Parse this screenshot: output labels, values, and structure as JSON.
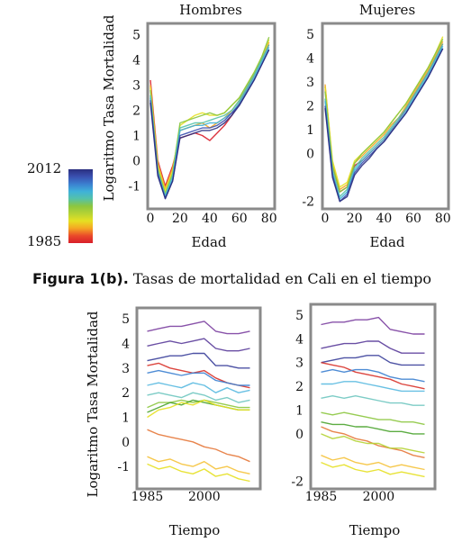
{
  "figure_caption": {
    "label": "Figura 1(b).",
    "text": " Tasas de mortalidad en Cali en el tiempo"
  },
  "colorbar": {
    "max_label": "2012",
    "min_label": "1985",
    "colors": [
      "#2a2f7f",
      "#3a50b0",
      "#3b7fd0",
      "#3fb1d9",
      "#55c2a8",
      "#8cc63f",
      "#b5d334",
      "#e6e022",
      "#f5a623",
      "#ea4a2a",
      "#d81e2a"
    ]
  },
  "chart_data": [
    {
      "type": "line",
      "title": "Hombres",
      "xlabel": "Edad",
      "ylabel": "Logaritmo Tasa Mortalidad",
      "xlim": [
        0,
        82
      ],
      "ylim": [
        -1.8,
        5.3
      ],
      "xticks": [
        "0",
        "20",
        "40",
        "60",
        "80"
      ],
      "yticks": [
        "-1",
        "0",
        "1",
        "2",
        "3",
        "4",
        "5"
      ],
      "x": [
        0,
        5,
        10,
        15,
        20,
        25,
        30,
        35,
        40,
        45,
        50,
        55,
        60,
        65,
        70,
        75,
        80
      ],
      "series": [
        {
          "color": "#d81e2a",
          "values": [
            3.2,
            0.0,
            -1.0,
            -0.2,
            0.9,
            1.0,
            1.1,
            1.0,
            0.8,
            1.1,
            1.4,
            1.8,
            2.3,
            2.8,
            3.4,
            4.0,
            4.6
          ]
        },
        {
          "color": "#f5a623",
          "values": [
            3.0,
            -0.1,
            -1.1,
            -0.3,
            1.2,
            1.3,
            1.4,
            1.5,
            1.3,
            1.5,
            1.7,
            2.0,
            2.4,
            2.9,
            3.4,
            4.0,
            4.7
          ]
        },
        {
          "color": "#e6e022",
          "values": [
            2.9,
            -0.2,
            -1.2,
            -0.4,
            1.4,
            1.6,
            1.8,
            1.9,
            1.8,
            1.8,
            1.9,
            2.2,
            2.5,
            3.0,
            3.5,
            4.1,
            4.8
          ]
        },
        {
          "color": "#8cc63f",
          "values": [
            2.8,
            -0.3,
            -1.3,
            -0.5,
            1.5,
            1.6,
            1.7,
            1.8,
            1.9,
            1.8,
            1.9,
            2.2,
            2.5,
            3.0,
            3.5,
            4.1,
            4.9
          ]
        },
        {
          "color": "#55c2a8",
          "values": [
            2.6,
            -0.4,
            -1.4,
            -0.6,
            1.3,
            1.4,
            1.5,
            1.5,
            1.6,
            1.7,
            1.8,
            2.0,
            2.4,
            2.9,
            3.4,
            4.0,
            4.6
          ]
        },
        {
          "color": "#3fb1d9",
          "values": [
            2.5,
            -0.5,
            -1.4,
            -0.7,
            1.2,
            1.3,
            1.4,
            1.4,
            1.5,
            1.5,
            1.7,
            1.9,
            2.3,
            2.8,
            3.3,
            3.9,
            4.5
          ]
        },
        {
          "color": "#3a50b0",
          "values": [
            2.4,
            -0.5,
            -1.5,
            -0.8,
            1.0,
            1.1,
            1.2,
            1.3,
            1.3,
            1.4,
            1.6,
            1.9,
            2.2,
            2.7,
            3.2,
            3.8,
            4.4
          ]
        },
        {
          "color": "#2a2f7f",
          "values": [
            2.3,
            -0.6,
            -1.5,
            -0.8,
            0.9,
            1.0,
            1.1,
            1.2,
            1.2,
            1.3,
            1.5,
            1.8,
            2.2,
            2.7,
            3.2,
            3.8,
            4.4
          ]
        }
      ]
    },
    {
      "type": "line",
      "title": "Mujeres",
      "xlabel": "Edad",
      "ylabel": "",
      "xlim": [
        0,
        82
      ],
      "ylim": [
        -2.2,
        5.3
      ],
      "xticks": [
        "0",
        "20",
        "40",
        "60",
        "80"
      ],
      "yticks": [
        "-2",
        "0",
        "1",
        "2",
        "3",
        "4",
        "5"
      ],
      "x": [
        0,
        5,
        10,
        15,
        20,
        25,
        30,
        35,
        40,
        45,
        50,
        55,
        60,
        65,
        70,
        75,
        80
      ],
      "series": [
        {
          "color": "#d81e2a",
          "values": [
            2.8,
            -0.5,
            -1.6,
            -1.4,
            -0.5,
            -0.3,
            0.0,
            0.3,
            0.6,
            1.0,
            1.4,
            1.9,
            2.4,
            2.9,
            3.4,
            4.0,
            4.6
          ]
        },
        {
          "color": "#f5a623",
          "values": [
            2.9,
            -0.4,
            -1.5,
            -1.3,
            -0.4,
            -0.1,
            0.2,
            0.5,
            0.8,
            1.2,
            1.5,
            2.0,
            2.5,
            3.0,
            3.5,
            4.1,
            4.7
          ]
        },
        {
          "color": "#e6e022",
          "values": [
            2.8,
            -0.3,
            -1.4,
            -1.2,
            -0.3,
            0.0,
            0.3,
            0.6,
            0.9,
            1.3,
            1.7,
            2.1,
            2.6,
            3.1,
            3.6,
            4.2,
            4.9
          ]
        },
        {
          "color": "#8cc63f",
          "values": [
            2.6,
            -0.5,
            -1.6,
            -1.4,
            -0.4,
            0.0,
            0.3,
            0.6,
            0.9,
            1.3,
            1.7,
            2.1,
            2.6,
            3.1,
            3.6,
            4.2,
            4.8
          ]
        },
        {
          "color": "#55c2a8",
          "values": [
            2.3,
            -0.7,
            -1.8,
            -1.5,
            -0.6,
            -0.2,
            0.1,
            0.4,
            0.7,
            1.1,
            1.5,
            1.9,
            2.4,
            2.9,
            3.4,
            4.0,
            4.6
          ]
        },
        {
          "color": "#3fb1d9",
          "values": [
            2.2,
            -0.8,
            -1.9,
            -1.6,
            -0.7,
            -0.3,
            0.0,
            0.3,
            0.6,
            1.0,
            1.4,
            1.8,
            2.3,
            2.8,
            3.3,
            3.9,
            4.5
          ]
        },
        {
          "color": "#3a50b0",
          "values": [
            2.0,
            -0.9,
            -2.0,
            -1.7,
            -0.8,
            -0.4,
            -0.1,
            0.2,
            0.5,
            0.9,
            1.3,
            1.7,
            2.2,
            2.7,
            3.2,
            3.8,
            4.4
          ]
        },
        {
          "color": "#2a2f7f",
          "values": [
            1.9,
            -1.0,
            -2.0,
            -1.8,
            -0.9,
            -0.5,
            -0.2,
            0.2,
            0.5,
            0.9,
            1.3,
            1.7,
            2.2,
            2.7,
            3.2,
            3.8,
            4.4
          ]
        }
      ]
    },
    {
      "type": "line",
      "title": "",
      "xlabel": "Tiempo",
      "ylabel": "Logaritmo Tasa Mortalidad",
      "xlim": [
        1983,
        2014
      ],
      "ylim": [
        -1.8,
        5.3
      ],
      "xticks": [
        "1985",
        "2000"
      ],
      "yticks": [
        "-1",
        "0",
        "1",
        "2",
        "3",
        "4",
        "5"
      ],
      "x": [
        1985,
        1988,
        1991,
        1994,
        1997,
        2000,
        2003,
        2006,
        2009,
        2012
      ],
      "series": [
        {
          "color": "#7b3fa0",
          "values": [
            4.5,
            4.6,
            4.7,
            4.7,
            4.8,
            4.9,
            4.5,
            4.4,
            4.4,
            4.5
          ]
        },
        {
          "color": "#5a3c9a",
          "values": [
            3.9,
            4.0,
            4.1,
            4.0,
            4.1,
            4.2,
            3.8,
            3.7,
            3.7,
            3.8
          ]
        },
        {
          "color": "#3a3f9a",
          "values": [
            3.3,
            3.4,
            3.5,
            3.5,
            3.6,
            3.6,
            3.1,
            3.1,
            3.0,
            3.0
          ]
        },
        {
          "color": "#d8322a",
          "values": [
            3.1,
            3.2,
            3.0,
            2.9,
            2.8,
            2.9,
            2.6,
            2.4,
            2.3,
            2.2
          ]
        },
        {
          "color": "#3b7fd0",
          "values": [
            2.8,
            2.9,
            2.8,
            2.7,
            2.8,
            2.8,
            2.5,
            2.4,
            2.3,
            2.3
          ]
        },
        {
          "color": "#58b9e0",
          "values": [
            2.3,
            2.4,
            2.3,
            2.2,
            2.4,
            2.3,
            2.0,
            2.2,
            2.0,
            2.1
          ]
        },
        {
          "color": "#6fc7c0",
          "values": [
            1.9,
            2.0,
            1.9,
            1.8,
            2.0,
            1.9,
            1.7,
            1.8,
            1.6,
            1.7
          ]
        },
        {
          "color": "#8cc63f",
          "values": [
            1.4,
            1.6,
            1.6,
            1.7,
            1.6,
            1.7,
            1.6,
            1.5,
            1.4,
            1.4
          ]
        },
        {
          "color": "#4aa32e",
          "values": [
            1.2,
            1.4,
            1.6,
            1.5,
            1.7,
            1.6,
            1.5,
            1.4,
            1.3,
            1.3
          ]
        },
        {
          "color": "#e6e022",
          "values": [
            1.0,
            1.3,
            1.4,
            1.6,
            1.5,
            1.7,
            1.5,
            1.4,
            1.3,
            1.3
          ]
        },
        {
          "color": "#e5783a",
          "values": [
            0.5,
            0.3,
            0.2,
            0.1,
            0.0,
            -0.2,
            -0.3,
            -0.5,
            -0.6,
            -0.8
          ]
        },
        {
          "color": "#f5c23a",
          "values": [
            -0.6,
            -0.8,
            -0.7,
            -0.9,
            -1.0,
            -0.8,
            -1.1,
            -1.0,
            -1.2,
            -1.3
          ]
        },
        {
          "color": "#e6e022",
          "values": [
            -0.9,
            -1.1,
            -1.0,
            -1.2,
            -1.3,
            -1.1,
            -1.4,
            -1.3,
            -1.5,
            -1.6
          ]
        }
      ]
    },
    {
      "type": "line",
      "title": "",
      "xlabel": "Tiempo",
      "ylabel": "",
      "xlim": [
        1983,
        2014
      ],
      "ylim": [
        -2.2,
        5.3
      ],
      "xticks": [
        "1985",
        "2000"
      ],
      "yticks": [
        "-2",
        "0",
        "1",
        "2",
        "3",
        "4",
        "5"
      ],
      "x": [
        1985,
        1988,
        1991,
        1994,
        1997,
        2000,
        2003,
        2006,
        2009,
        2012
      ],
      "series": [
        {
          "color": "#7b3fa0",
          "values": [
            4.6,
            4.7,
            4.7,
            4.8,
            4.8,
            4.9,
            4.4,
            4.3,
            4.2,
            4.2
          ]
        },
        {
          "color": "#5a3c9a",
          "values": [
            3.6,
            3.7,
            3.8,
            3.8,
            3.9,
            3.9,
            3.6,
            3.4,
            3.4,
            3.4
          ]
        },
        {
          "color": "#3a3f9a",
          "values": [
            3.0,
            3.1,
            3.2,
            3.2,
            3.3,
            3.3,
            3.0,
            2.9,
            2.9,
            2.9
          ]
        },
        {
          "color": "#d8322a",
          "values": [
            3.0,
            2.9,
            2.8,
            2.6,
            2.5,
            2.4,
            2.3,
            2.1,
            2.0,
            1.9
          ]
        },
        {
          "color": "#3b7fd0",
          "values": [
            2.6,
            2.7,
            2.6,
            2.7,
            2.7,
            2.6,
            2.4,
            2.3,
            2.3,
            2.2
          ]
        },
        {
          "color": "#58b9e0",
          "values": [
            2.1,
            2.1,
            2.2,
            2.2,
            2.1,
            2.0,
            1.9,
            1.8,
            1.8,
            1.8
          ]
        },
        {
          "color": "#6fc7c0",
          "values": [
            1.5,
            1.6,
            1.5,
            1.6,
            1.5,
            1.4,
            1.3,
            1.3,
            1.2,
            1.2
          ]
        },
        {
          "color": "#8cc63f",
          "values": [
            0.9,
            0.8,
            0.9,
            0.8,
            0.7,
            0.6,
            0.6,
            0.5,
            0.5,
            0.4
          ]
        },
        {
          "color": "#4aa32e",
          "values": [
            0.5,
            0.4,
            0.4,
            0.3,
            0.3,
            0.2,
            0.1,
            0.1,
            0.0,
            0.0
          ]
        },
        {
          "color": "#e5783a",
          "values": [
            0.3,
            0.1,
            0.0,
            -0.2,
            -0.3,
            -0.5,
            -0.6,
            -0.7,
            -0.9,
            -1.0
          ]
        },
        {
          "color": "#b5d334",
          "values": [
            0.0,
            -0.2,
            -0.1,
            -0.3,
            -0.4,
            -0.4,
            -0.6,
            -0.6,
            -0.7,
            -0.8
          ]
        },
        {
          "color": "#f5c23a",
          "values": [
            -0.9,
            -1.1,
            -1.0,
            -1.2,
            -1.3,
            -1.2,
            -1.4,
            -1.3,
            -1.4,
            -1.5
          ]
        },
        {
          "color": "#e6e022",
          "values": [
            -1.2,
            -1.4,
            -1.3,
            -1.5,
            -1.6,
            -1.5,
            -1.7,
            -1.6,
            -1.7,
            -1.8
          ]
        }
      ]
    }
  ]
}
